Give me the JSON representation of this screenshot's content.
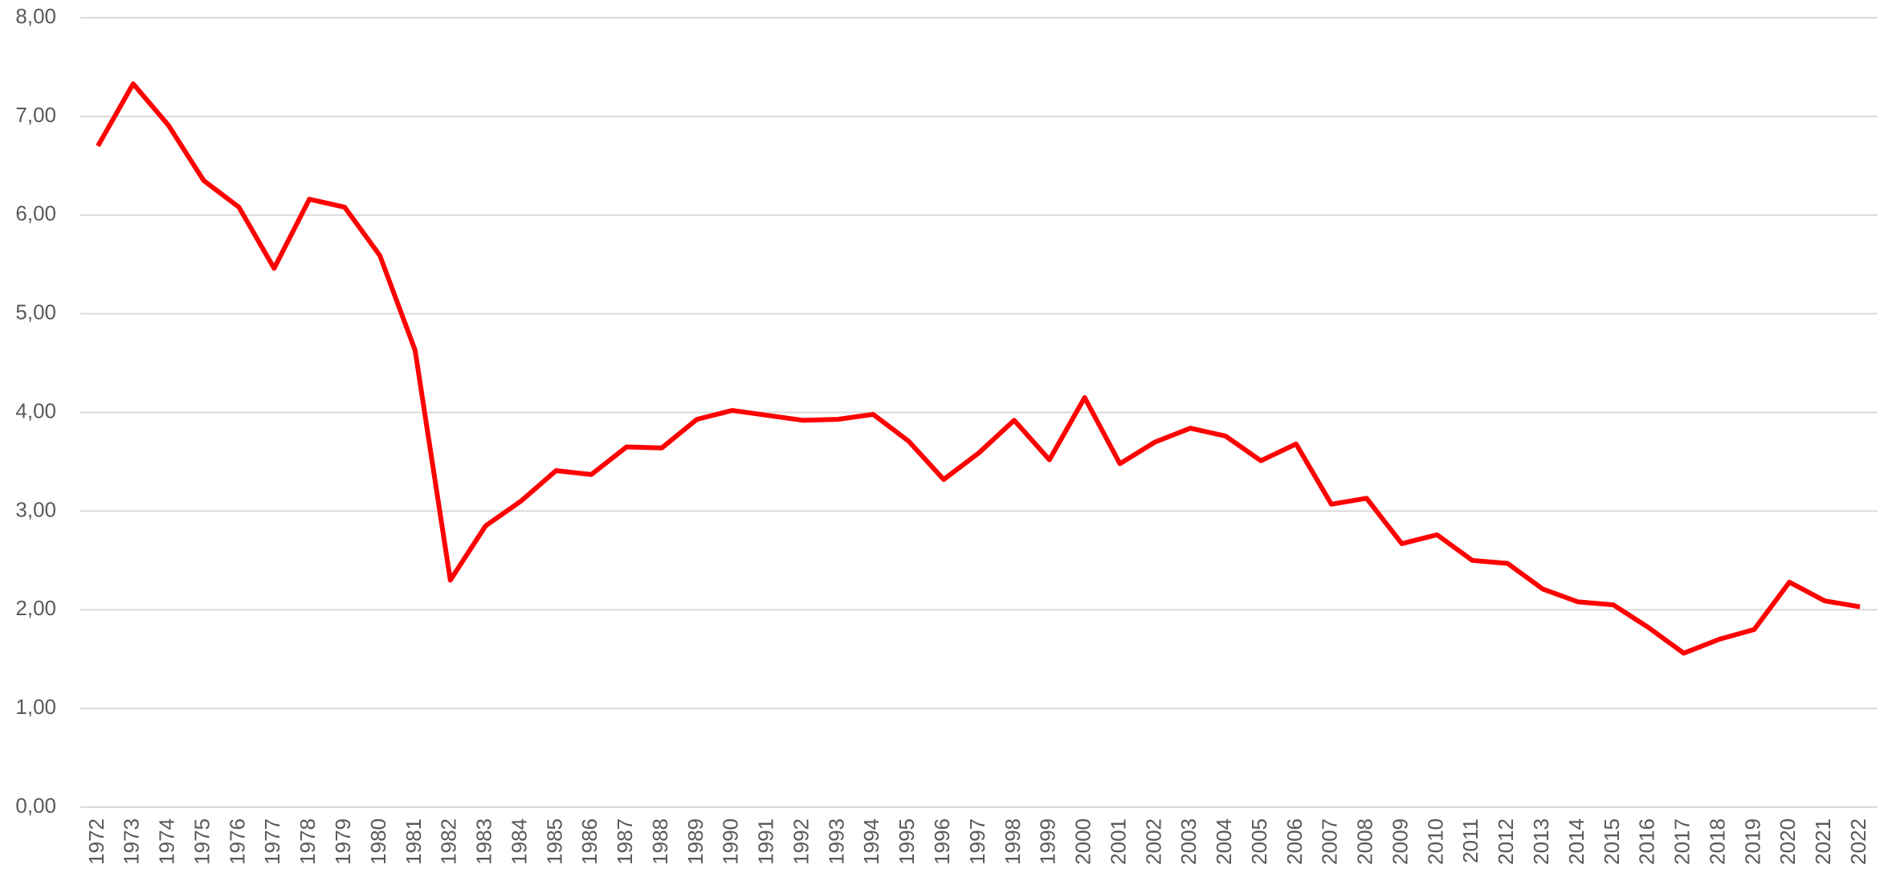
{
  "chart_data": {
    "type": "line",
    "categories": [
      "1972",
      "1973",
      "1974",
      "1975",
      "1976",
      "1977",
      "1978",
      "1979",
      "1980",
      "1981",
      "1982",
      "1983",
      "1984",
      "1985",
      "1986",
      "1987",
      "1988",
      "1989",
      "1990",
      "1991",
      "1992",
      "1993",
      "1994",
      "1995",
      "1996",
      "1997",
      "1998",
      "1999",
      "2000",
      "2001",
      "2002",
      "2003",
      "2004",
      "2005",
      "2006",
      "2007",
      "2008",
      "2009",
      "2010",
      "2011",
      "2012",
      "2013",
      "2014",
      "2015",
      "2016",
      "2017",
      "2018",
      "2019",
      "2020",
      "2021",
      "2022"
    ],
    "values": [
      6.7,
      7.33,
      6.91,
      6.35,
      6.08,
      5.46,
      6.16,
      6.08,
      5.59,
      4.63,
      2.3,
      2.85,
      3.1,
      3.41,
      3.37,
      3.65,
      3.64,
      3.93,
      4.02,
      3.97,
      3.92,
      3.93,
      3.98,
      3.71,
      3.32,
      3.59,
      3.92,
      3.52,
      4.15,
      3.48,
      3.7,
      3.84,
      3.76,
      3.51,
      3.68,
      3.07,
      3.13,
      2.67,
      2.76,
      2.5,
      2.47,
      2.21,
      2.08,
      2.05,
      1.82,
      1.56,
      1.7,
      1.8,
      2.28,
      2.09,
      2.03
    ],
    "color": "#ff0000",
    "ylim": [
      0,
      8
    ],
    "yticks": [
      {
        "value": 0,
        "label": "0,00"
      },
      {
        "value": 1,
        "label": "1,00"
      },
      {
        "value": 2,
        "label": "2,00"
      },
      {
        "value": 3,
        "label": "3,00"
      },
      {
        "value": 4,
        "label": "4,00"
      },
      {
        "value": 5,
        "label": "5,00"
      },
      {
        "value": 6,
        "label": "6,00"
      },
      {
        "value": 7,
        "label": "7,00"
      },
      {
        "value": 8,
        "label": "8,00"
      }
    ],
    "grid": true
  }
}
